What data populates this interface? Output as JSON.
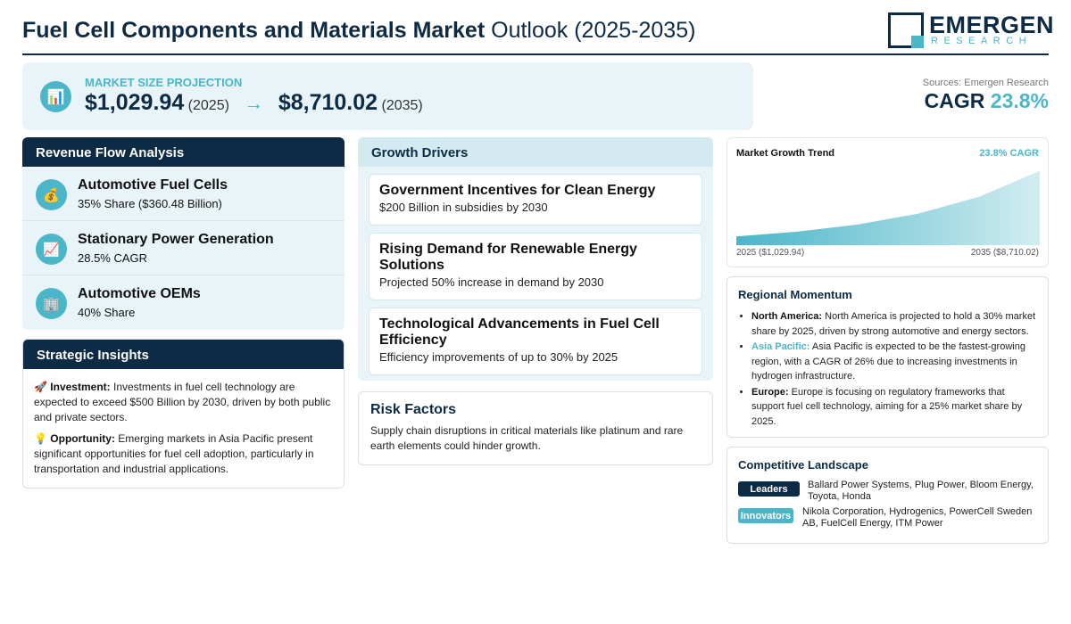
{
  "header": {
    "title_bold": "Fuel Cell Components and Materials Market",
    "title_light": "Outlook (2025-2035)",
    "logo_main": "EMERGEN",
    "logo_sub": "RESEARCH"
  },
  "projection": {
    "label": "MARKET SIZE PROJECTION",
    "icon": "bar-chart-icon",
    "start_value": "$1,029.94",
    "start_year": "(2025)",
    "arrow": "→",
    "end_value": "$8,710.02",
    "end_year": "(2035)"
  },
  "sources": "Sources: Emergen Research",
  "cagr": {
    "label": "CAGR",
    "value": "23.8%"
  },
  "revenue_flow": {
    "title": "Revenue Flow Analysis",
    "items": [
      {
        "icon": "money-bag-icon",
        "glyph": "💰",
        "title": "Automotive Fuel Cells",
        "sub": "35% Share ($360.48 Billion)"
      },
      {
        "icon": "growth-chart-icon",
        "glyph": "📈",
        "title": "Stationary Power Generation",
        "sub": "28.5% CAGR"
      },
      {
        "icon": "building-icon",
        "glyph": "🏢",
        "title": "Automotive OEMs",
        "sub": "40% Share"
      }
    ]
  },
  "strategic": {
    "title": "Strategic Insights",
    "investment_icon": "🚀",
    "investment_label": "Investment:",
    "investment_text": "Investments in fuel cell technology are expected to exceed $500 Billion by 2030, driven by both public and private sectors.",
    "opportunity_icon": "💡",
    "opportunity_label": "Opportunity:",
    "opportunity_text": "Emerging markets in Asia Pacific present significant opportunities for fuel cell adoption, particularly in transportation and industrial applications."
  },
  "growth_drivers": {
    "title": "Growth Drivers",
    "items": [
      {
        "title": "Government Incentives for Clean Energy",
        "desc": "$200 Billion in subsidies by 2030"
      },
      {
        "title": "Rising Demand for Renewable Energy Solutions",
        "desc": "Projected 50% increase in demand by 2030"
      },
      {
        "title": "Technological Advancements in Fuel Cell Efficiency",
        "desc": "Efficiency improvements of up to 30% by 2025"
      }
    ]
  },
  "risk": {
    "title": "Risk Factors",
    "desc": "Supply chain disruptions in critical materials like platinum and rare earth elements could hinder growth."
  },
  "chart_data": {
    "type": "area",
    "title": "Market Growth Trend",
    "annotation": "23.8% CAGR",
    "x": [
      2025,
      2027,
      2029,
      2031,
      2033,
      2035
    ],
    "values": [
      1029.94,
      1579.0,
      2419.0,
      3707.0,
      5680.0,
      8710.02
    ],
    "x_start_label": "2025 ($1,029.94)",
    "x_end_label": "2035 ($8,710.02)",
    "ylim": [
      0,
      9000
    ],
    "grid": false,
    "color": "#4ab6c8"
  },
  "regional": {
    "title": "Regional Momentum",
    "items": [
      {
        "region": "North America:",
        "text": "North America is projected to hold a 30% market share by 2025, driven by strong automotive and energy sectors."
      },
      {
        "region": "Asia Pacific:",
        "text": "Asia Pacific is expected to be the fastest-growing region, with a CAGR of 26% due to increasing investments in hydrogen infrastructure."
      },
      {
        "region": "Europe:",
        "text": "Europe is focusing on regulatory frameworks that support fuel cell technology, aiming for a 25% market share by 2025."
      }
    ]
  },
  "competitive": {
    "title": "Competitive Landscape",
    "leaders_label": "Leaders",
    "leaders": "Ballard Power Systems, Plug Power, Bloom Energy, Toyota, Honda",
    "innovators_label": "Innovators",
    "innovators": "Nikola Corporation, Hydrogenics, PowerCell Sweden AB, FuelCell Energy, ITM Power"
  },
  "colors": {
    "navy": "#0d2b45",
    "teal": "#4ab6c8",
    "panel_bg": "#e8f4f7"
  }
}
